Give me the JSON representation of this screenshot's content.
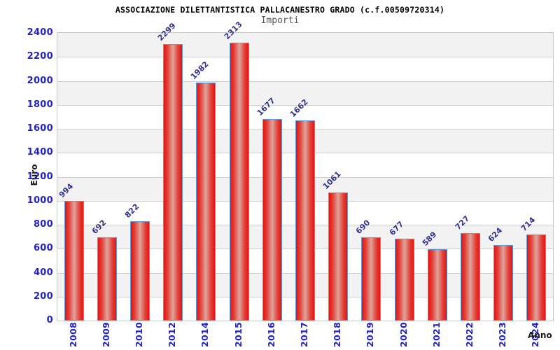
{
  "chart_data": {
    "type": "bar",
    "title": "ASSOCIAZIONE DILETTANTISTICA PALLACANESTRO GRADO (c.f.00509720314)",
    "subtitle": "Importi",
    "xlabel": "Anno",
    "ylabel": "Euro",
    "categories": [
      "2008",
      "2009",
      "2010",
      "2012",
      "2014",
      "2015",
      "2016",
      "2017",
      "2018",
      "2019",
      "2020",
      "2021",
      "2022",
      "2023",
      "2024"
    ],
    "values": [
      994,
      692,
      822,
      2299,
      1982,
      2313,
      1677,
      1662,
      1061,
      690,
      677,
      589,
      727,
      624,
      714
    ],
    "ylim": [
      0,
      2400
    ],
    "ytick_step": 200,
    "grid": "horizontal-bands",
    "legend": "none",
    "colors": {
      "title": "#000000",
      "subtitle": "#555555",
      "axis_tick_label": "#2222cc",
      "value_label": "#333390",
      "axis_title": "#1a1a1a",
      "bar_edge": "#e51212",
      "bar_mid": "#e2433b",
      "bar_center": "#dfa49b",
      "bar_border": "#5b9ddb",
      "band_gray": "#f2f2f2",
      "band_white": "#ffffff",
      "grid_line": "#cfcfcf"
    }
  }
}
